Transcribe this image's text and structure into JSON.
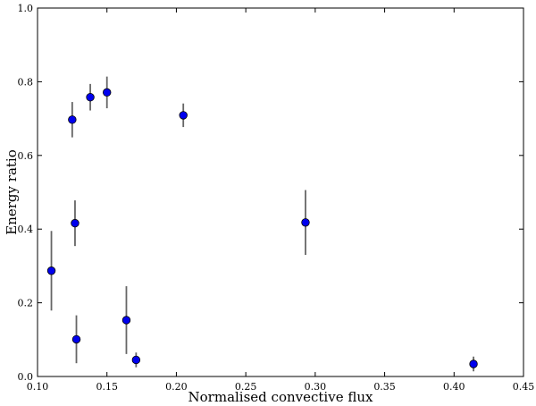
{
  "chart_data": {
    "type": "scatter",
    "xlabel": "Normalised convective flux",
    "ylabel": "Energy ratio",
    "xlim": [
      0.1,
      0.45
    ],
    "ylim": [
      0.0,
      1.0
    ],
    "grid": false,
    "x_ticks": [
      0.1,
      0.15,
      0.2,
      0.25,
      0.3,
      0.35,
      0.4,
      0.45
    ],
    "x_tick_labels": [
      "0.10",
      "0.15",
      "0.20",
      "0.25",
      "0.30",
      "0.35",
      "0.40",
      "0.45"
    ],
    "y_ticks": [
      0.0,
      0.2,
      0.4,
      0.6,
      0.8,
      1.0
    ],
    "y_tick_labels": [
      "0.0",
      "0.2",
      "0.4",
      "0.6",
      "0.8",
      "1.0"
    ],
    "marker_color": "#0000ee",
    "errorbar_color": "#666666",
    "series": [
      {
        "points": [
          {
            "x": 0.11,
            "y": 0.287,
            "yerr": 0.108
          },
          {
            "x": 0.125,
            "y": 0.697,
            "yerr": 0.048
          },
          {
            "x": 0.127,
            "y": 0.416,
            "yerr": 0.062
          },
          {
            "x": 0.128,
            "y": 0.101,
            "yerr": 0.065
          },
          {
            "x": 0.138,
            "y": 0.758,
            "yerr": 0.036
          },
          {
            "x": 0.15,
            "y": 0.771,
            "yerr": 0.043
          },
          {
            "x": 0.164,
            "y": 0.153,
            "yerr": 0.092
          },
          {
            "x": 0.171,
            "y": 0.045,
            "yerr": 0.02
          },
          {
            "x": 0.205,
            "y": 0.709,
            "yerr": 0.032
          },
          {
            "x": 0.293,
            "y": 0.418,
            "yerr": 0.088
          },
          {
            "x": 0.414,
            "y": 0.034,
            "yerr": 0.02
          }
        ]
      }
    ]
  }
}
